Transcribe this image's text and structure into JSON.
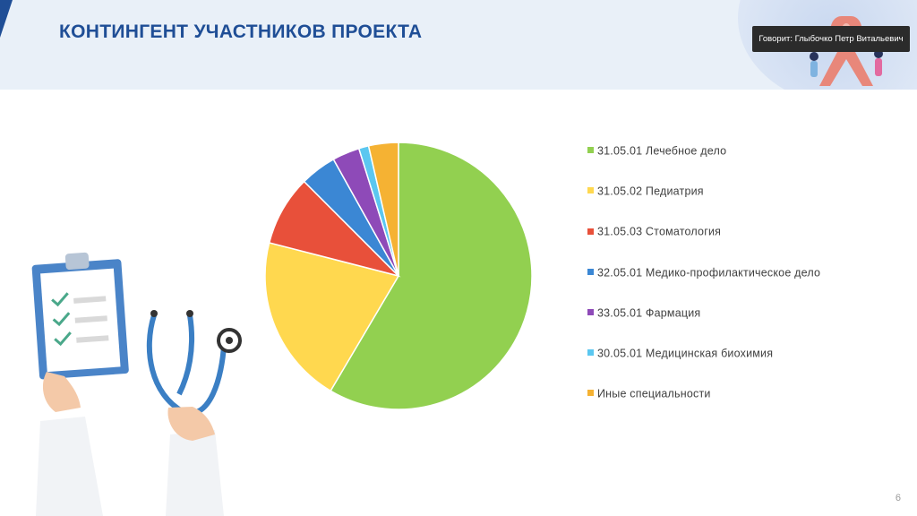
{
  "slide": {
    "title": "КОНТИНГЕНТ УЧАСТНИКОВ ПРОЕКТА",
    "speaker": "Говорит: Глыбочко Петр Витальевич",
    "page_number": "6"
  },
  "chart_data": {
    "type": "pie",
    "title": "",
    "legend_position": "right",
    "categories": [
      "31.05.01 Лечебное дело",
      "31.05.02 Педиатрия",
      "31.05.03 Стоматология",
      "32.05.01 Медико-профилактическое дело",
      "33.05.01 Фармация",
      "30.05.01 Медицинская биохимия",
      "Иные специальности"
    ],
    "values": [
      58.5,
      20.5,
      8.5,
      4.4,
      3.3,
      1.2,
      3.6
    ],
    "colors": [
      "#92d050",
      "#ffd84f",
      "#e8503a",
      "#3b87d4",
      "#8e4ab8",
      "#5bc7f0",
      "#f5b233"
    ]
  }
}
